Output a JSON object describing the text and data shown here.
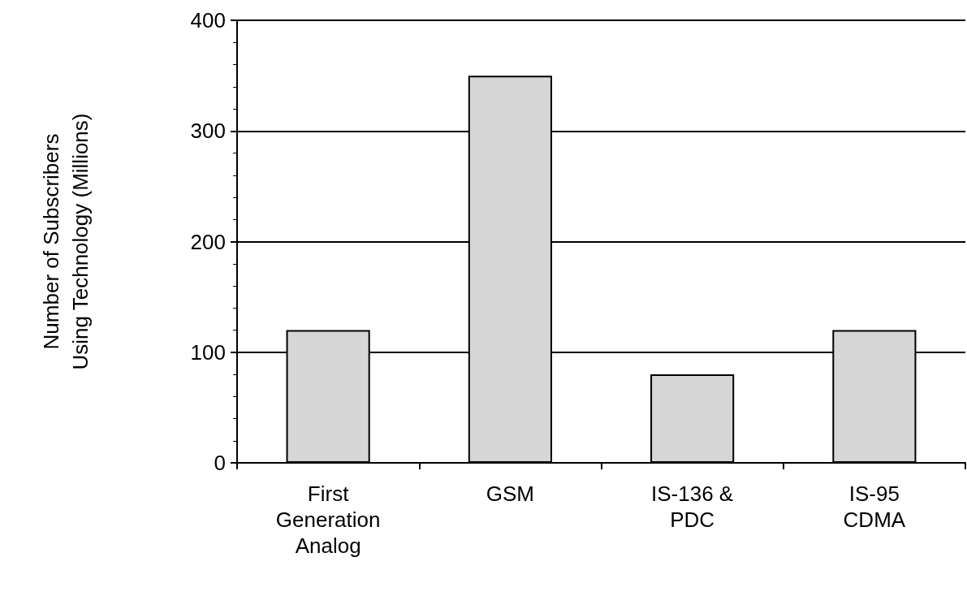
{
  "chart_data": {
    "type": "bar",
    "ylabel": "Number of Subscribers\nUsing Technology (Millions)",
    "categories": [
      "First\nGeneration\nAnalog",
      "GSM",
      "IS-136 &\nPDC",
      "IS-95\nCDMA"
    ],
    "values": [
      120,
      350,
      80,
      120
    ],
    "color": "#d6d6d6",
    "ylim": [
      0,
      400
    ],
    "yticks": [
      0,
      100,
      200,
      300,
      400
    ],
    "grid": "y"
  }
}
